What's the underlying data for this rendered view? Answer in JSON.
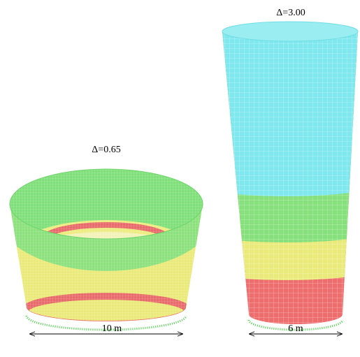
{
  "models": [
    {
      "delta": "Δ=0.65",
      "dimension": "10 m"
    },
    {
      "delta": "Δ=3.00",
      "dimension": "6 m"
    }
  ]
}
